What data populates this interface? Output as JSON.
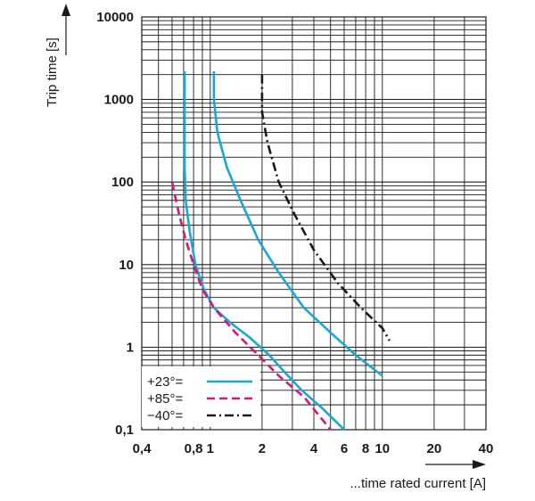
{
  "chart_data": {
    "type": "line",
    "xscale": "log",
    "yscale": "log",
    "xlim": [
      0.4,
      40
    ],
    "ylim": [
      0.1,
      10000
    ],
    "xlabel": "...time rated current [A]",
    "ylabel": "Trip time [s]",
    "x_ticks": [
      {
        "value": 0.4,
        "label": "0,4"
      },
      {
        "value": 0.8,
        "label": "0,8"
      },
      {
        "value": 1,
        "label": "1"
      },
      {
        "value": 2,
        "label": "2"
      },
      {
        "value": 4,
        "label": "4"
      },
      {
        "value": 6,
        "label": "6"
      },
      {
        "value": 8,
        "label": "8"
      },
      {
        "value": 10,
        "label": "10"
      },
      {
        "value": 20,
        "label": "20"
      },
      {
        "value": 40,
        "label": "40"
      }
    ],
    "y_ticks": [
      {
        "value": 0.1,
        "label": "0,1"
      },
      {
        "value": 1,
        "label": "1"
      },
      {
        "value": 10,
        "label": "10"
      },
      {
        "value": 100,
        "label": "100"
      },
      {
        "value": 1000,
        "label": "1000"
      },
      {
        "value": 10000,
        "label": "10000"
      }
    ],
    "series": [
      {
        "name": "+23°=",
        "color": "#1aa6d6",
        "style": "solid",
        "points": [
          [
            0.71,
            2200
          ],
          [
            0.71,
            500
          ],
          [
            0.71,
            150
          ],
          [
            0.72,
            60
          ],
          [
            0.76,
            25
          ],
          [
            0.82,
            10
          ],
          [
            0.92,
            5
          ],
          [
            1.05,
            3
          ],
          [
            1.3,
            2
          ],
          [
            1.7,
            1.3
          ],
          [
            2.2,
            0.8
          ],
          [
            2.7,
            0.5
          ],
          [
            3.4,
            0.3
          ],
          [
            4.5,
            0.18
          ],
          [
            6.0,
            0.1
          ]
        ]
      },
      {
        "name": "+23°=",
        "color": "#1aa6d6",
        "style": "solid",
        "points": [
          [
            1.05,
            2200
          ],
          [
            1.05,
            1000
          ],
          [
            1.1,
            400
          ],
          [
            1.25,
            150
          ],
          [
            1.5,
            60
          ],
          [
            1.9,
            20
          ],
          [
            2.5,
            8
          ],
          [
            3.5,
            3
          ],
          [
            5.0,
            1.5
          ],
          [
            7.0,
            0.8
          ],
          [
            10.0,
            0.45
          ]
        ]
      },
      {
        "name": "+85°=",
        "color": "#d4177a",
        "style": "dashed",
        "points": [
          [
            0.6,
            100
          ],
          [
            0.66,
            40
          ],
          [
            0.72,
            20
          ],
          [
            0.8,
            10
          ],
          [
            0.9,
            5
          ],
          [
            1.05,
            3
          ],
          [
            1.4,
            1.5
          ],
          [
            1.9,
            0.8
          ],
          [
            2.5,
            0.45
          ],
          [
            3.5,
            0.25
          ],
          [
            5.0,
            0.1
          ]
        ]
      },
      {
        "name": "−40°=",
        "color": "#1a1a1a",
        "style": "dashdot",
        "points": [
          [
            2.0,
            2000
          ],
          [
            2.0,
            700
          ],
          [
            2.15,
            300
          ],
          [
            2.5,
            100
          ],
          [
            3.1,
            40
          ],
          [
            4.0,
            15
          ],
          [
            5.5,
            6
          ],
          [
            7.5,
            3
          ],
          [
            10.0,
            1.7
          ],
          [
            11.0,
            1.2
          ]
        ]
      }
    ],
    "legend": {
      "placement": "bottom-left",
      "entries": [
        {
          "label": "+23°=",
          "color": "#1aa6d6",
          "style": "solid"
        },
        {
          "label": "+85°=",
          "color": "#d4177a",
          "style": "dashed"
        },
        {
          "label": "−40°=",
          "color": "#1a1a1a",
          "style": "dashdot"
        }
      ]
    }
  }
}
